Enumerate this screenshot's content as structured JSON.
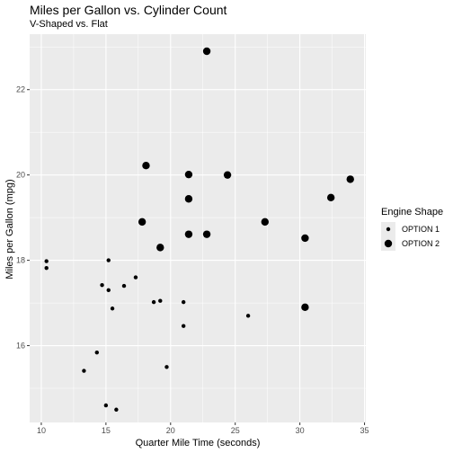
{
  "chart_data": {
    "type": "scatter",
    "title": "Miles per Gallon vs. Cylinder Count",
    "subtitle": "V-Shaped vs. Flat",
    "xlabel": "Quarter Mile Time (seconds)",
    "ylabel": "Miles per Gallon (mpg)",
    "xlim": [
      9.1,
      35.1
    ],
    "ylim": [
      14.2,
      23.3
    ],
    "x_ticks": [
      10,
      15,
      20,
      25,
      30,
      35
    ],
    "y_ticks": [
      16,
      18,
      20,
      22
    ],
    "grid": true,
    "legend": {
      "title": "Engine Shape",
      "position": "right",
      "entries": [
        "OPTION 1",
        "OPTION 2"
      ]
    },
    "series": [
      {
        "name": "OPTION 1",
        "points": [
          [
            10.4,
            17.98
          ],
          [
            10.4,
            17.82
          ],
          [
            15.2,
            18.0
          ],
          [
            17.3,
            17.6
          ],
          [
            14.7,
            17.42
          ],
          [
            16.4,
            17.4
          ],
          [
            15.2,
            17.3
          ],
          [
            18.7,
            17.02
          ],
          [
            19.2,
            17.05
          ],
          [
            21.0,
            17.02
          ],
          [
            15.5,
            16.87
          ],
          [
            26.0,
            16.7
          ],
          [
            21.0,
            16.46
          ],
          [
            14.3,
            15.84
          ],
          [
            19.7,
            15.5
          ],
          [
            13.3,
            15.41
          ],
          [
            15.0,
            14.6
          ],
          [
            15.8,
            14.5
          ]
        ]
      },
      {
        "name": "OPTION 2",
        "points": [
          [
            22.8,
            22.9
          ],
          [
            18.1,
            20.22
          ],
          [
            21.4,
            20.01
          ],
          [
            24.4,
            20.0
          ],
          [
            33.9,
            19.9
          ],
          [
            32.4,
            19.47
          ],
          [
            21.4,
            19.44
          ],
          [
            17.8,
            18.9
          ],
          [
            27.3,
            18.9
          ],
          [
            21.4,
            18.61
          ],
          [
            22.8,
            18.61
          ],
          [
            30.4,
            18.52
          ],
          [
            19.2,
            18.3
          ],
          [
            30.4,
            16.9
          ]
        ]
      }
    ],
    "colors": {
      "panel": "#ebebeb",
      "grid": "#ffffff",
      "point": "#000000"
    }
  }
}
